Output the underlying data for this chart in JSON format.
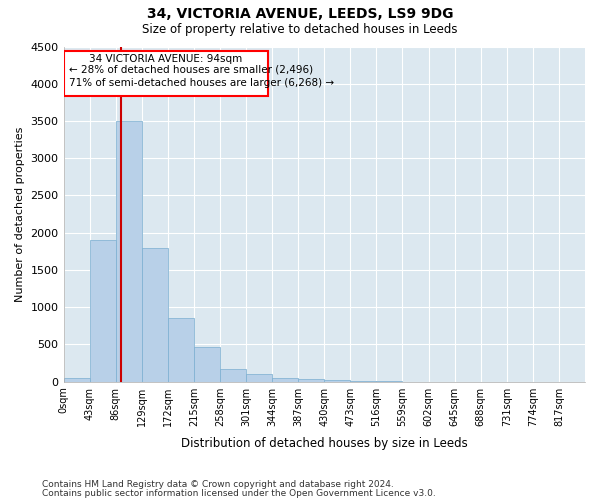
{
  "title1": "34, VICTORIA AVENUE, LEEDS, LS9 9DG",
  "title2": "Size of property relative to detached houses in Leeds",
  "xlabel": "Distribution of detached houses by size in Leeds",
  "ylabel": "Number of detached properties",
  "annotation_line1": "34 VICTORIA AVENUE: 94sqm",
  "annotation_line2": "← 28% of detached houses are smaller (2,496)",
  "annotation_line3": "71% of semi-detached houses are larger (6,268) →",
  "property_size": 94,
  "bin_edges": [
    0,
    43,
    86,
    129,
    172,
    215,
    258,
    301,
    344,
    387,
    430,
    473,
    516,
    559,
    602,
    645,
    688,
    731,
    774,
    817,
    860
  ],
  "bar_heights": [
    55,
    1900,
    3500,
    1800,
    850,
    460,
    175,
    105,
    55,
    32,
    18,
    8,
    4,
    2,
    1,
    1,
    0,
    0,
    0,
    0
  ],
  "bar_color": "#b8d0e8",
  "bar_edge_color": "#7aaed0",
  "vline_color": "#cc0000",
  "vline_x": 94,
  "background_color": "#dce8f0",
  "ylim": [
    0,
    4500
  ],
  "yticks": [
    0,
    500,
    1000,
    1500,
    2000,
    2500,
    3000,
    3500,
    4000,
    4500
  ],
  "footnote1": "Contains HM Land Registry data © Crown copyright and database right 2024.",
  "footnote2": "Contains public sector information licensed under the Open Government Licence v3.0."
}
